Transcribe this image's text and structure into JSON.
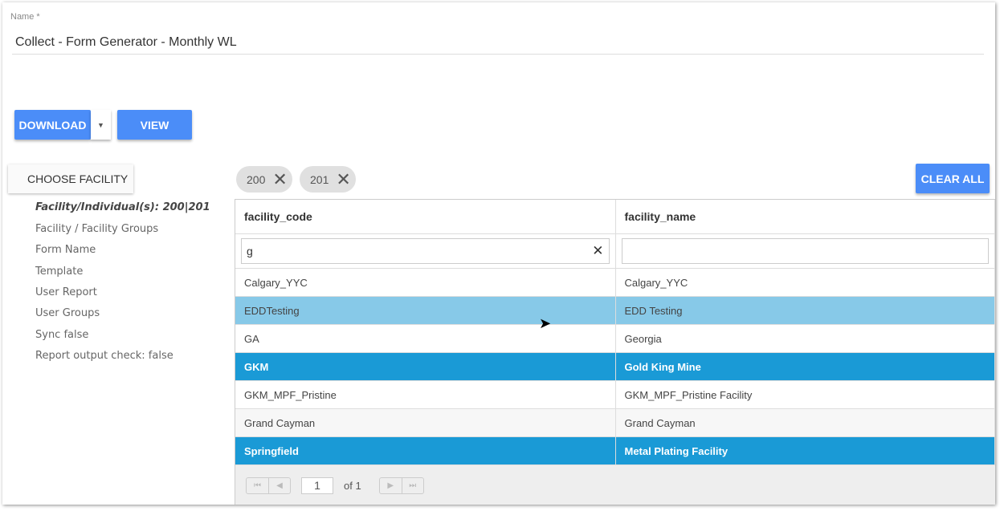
{
  "form": {
    "name_label": "Name *",
    "name_value": "Collect - Form Generator - Monthly WL"
  },
  "toolbar": {
    "download": "DOWNLOAD",
    "view": "VIEW",
    "choose_facility": "CHOOSE FACILITY",
    "clear_all": "CLEAR ALL"
  },
  "sidebar": {
    "items": [
      "Facility/Individual(s): 200|201",
      "Facility / Facility Groups",
      "Form Name",
      "Template",
      "User Report",
      "User Groups",
      "Sync false",
      "Report output check: false"
    ]
  },
  "chips": [
    "200",
    "201"
  ],
  "table": {
    "columns": [
      "facility_code",
      "facility_name"
    ],
    "filters": [
      "g",
      ""
    ],
    "rows": [
      {
        "code": "Calgary_YYC",
        "name": "Calgary_YYC",
        "state": "normal"
      },
      {
        "code": "EDDTesting",
        "name": "EDD Testing",
        "state": "hover"
      },
      {
        "code": "GA",
        "name": "Georgia",
        "state": "normal"
      },
      {
        "code": "GKM",
        "name": "Gold King Mine",
        "state": "selected"
      },
      {
        "code": "GKM_MPF_Pristine",
        "name": "GKM_MPF_Pristine Facility",
        "state": "normal"
      },
      {
        "code": "Grand Cayman",
        "name": "Grand Cayman",
        "state": "normal"
      },
      {
        "code": "Springfield",
        "name": "Metal Plating Facility",
        "state": "selected"
      }
    ]
  },
  "pagination": {
    "page": "1",
    "of": "of 1"
  },
  "colors": {
    "accent": "#4b8df8",
    "selected": "#1a9ad6",
    "hover": "#87c9e8"
  }
}
